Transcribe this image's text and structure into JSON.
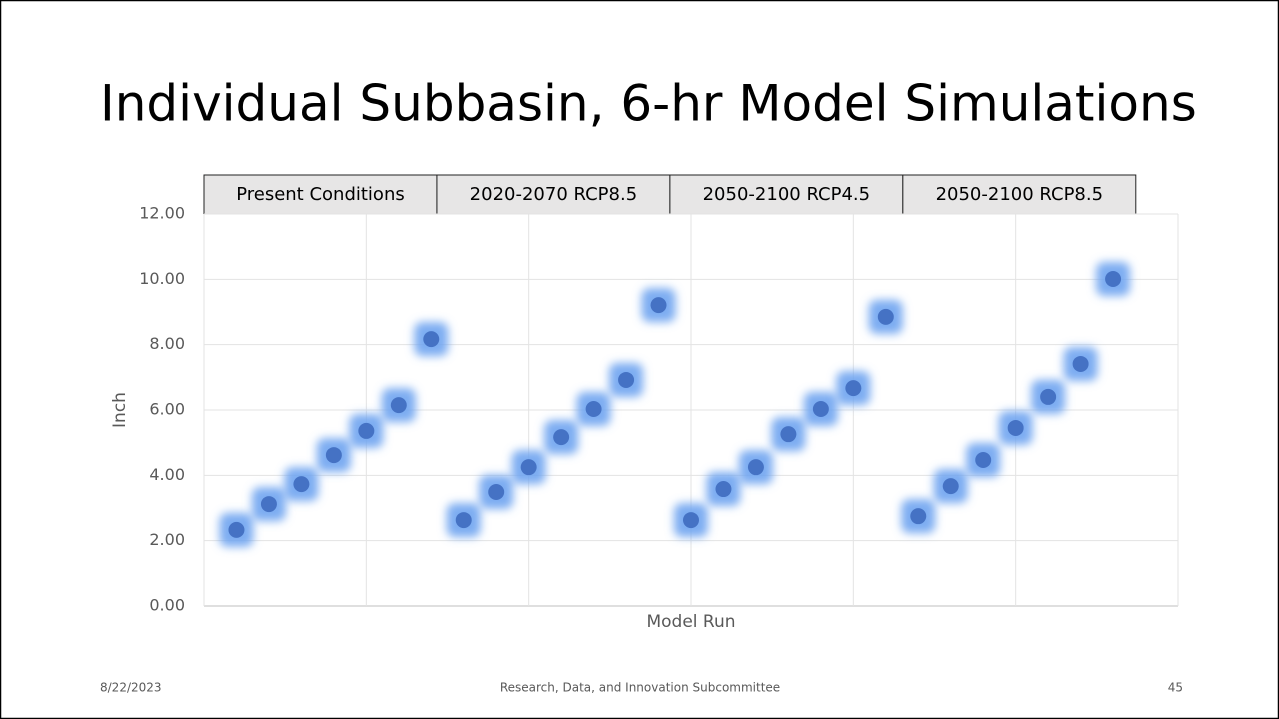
{
  "chart_data": {
    "type": "scatter",
    "title": "Individual Subbasin, 6-hr Model Simulations",
    "groups": [
      "Present Conditions",
      "2020-2070 RCP8.5",
      "2050-2100 RCP4.5",
      "2050-2100 RCP8.5"
    ],
    "x_label": "Model Run",
    "y_label": "Inch",
    "xlim": [
      0,
      30
    ],
    "xticks": [
      0,
      5,
      10,
      15,
      20,
      25,
      30
    ],
    "ylim": [
      0,
      12
    ],
    "yticks": [
      {
        "value": 0,
        "label": "0.00"
      },
      {
        "value": 2,
        "label": "2.00"
      },
      {
        "value": 4,
        "label": "4.00"
      },
      {
        "value": 6,
        "label": "6.00"
      },
      {
        "value": 8,
        "label": "8.00"
      },
      {
        "value": 10,
        "label": "10.00"
      },
      {
        "value": 12,
        "label": "12.00"
      }
    ],
    "grid": true,
    "series": [
      {
        "color": "#4472c4",
        "glow_color": "#6fa4f0",
        "x": [
          1,
          2,
          3,
          4,
          5,
          6,
          7,
          8,
          9,
          10,
          11,
          12,
          13,
          14,
          15,
          16,
          17,
          18,
          19,
          20,
          21,
          22,
          23,
          24,
          25,
          26,
          27,
          28
        ],
        "values": [
          2.33,
          3.12,
          3.73,
          4.62,
          5.36,
          6.15,
          8.17,
          2.63,
          3.49,
          4.25,
          5.17,
          6.03,
          6.92,
          9.21,
          2.63,
          3.58,
          4.25,
          5.26,
          6.03,
          6.67,
          8.85,
          2.75,
          3.67,
          4.47,
          5.45,
          6.4,
          7.41,
          10.01
        ]
      }
    ]
  },
  "footer": {
    "date": "8/22/2023",
    "center": "Research, Data, and Innovation Subcommittee",
    "page": "45"
  }
}
